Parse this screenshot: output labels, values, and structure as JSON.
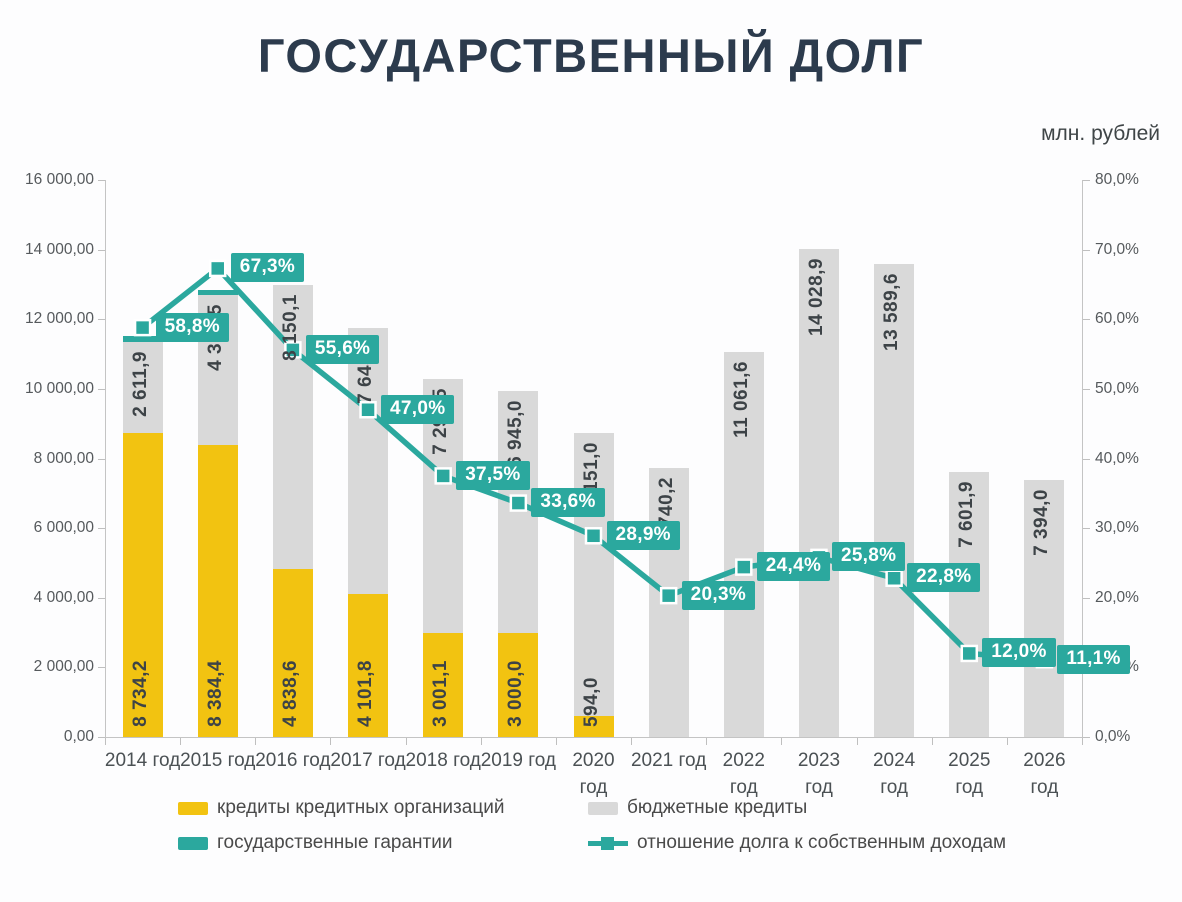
{
  "page": {
    "title": "ГОСУДАРСТВЕННЫЙ ДОЛГ",
    "units_label": "млн. рублей"
  },
  "colors": {
    "yellow": "#F2C311",
    "gray": "#D9D9D9",
    "teal": "#2BA89E",
    "title_text": "#2C3B4D",
    "bar_label_text": "#3D4347",
    "axis_text": "#55595C",
    "ratio_label_bg": "#2BA89E",
    "ratio_label_text": "#FFFFFF"
  },
  "chart_data": {
    "type": "combo: stacked-bar + line",
    "title": "ГОСУДАРСТВЕННЫЙ ДОЛГ",
    "units": "млн. рублей",
    "grid": false,
    "legend_position": "bottom",
    "categories": [
      "2014 год",
      "2015 год",
      "2016 год",
      "2017 год",
      "2018 год",
      "2019 год",
      "2020 год",
      "2021 год",
      "2022 год",
      "2023 год",
      "2024 год",
      "2025 год",
      "2026 год"
    ],
    "x_tick_lines": [
      [
        "2014 год"
      ],
      [
        "2015 год"
      ],
      [
        "2016 год"
      ],
      [
        "2017 год"
      ],
      [
        "2018 год"
      ],
      [
        "2019 год"
      ],
      [
        "2020",
        "год"
      ],
      [
        "2021 год"
      ],
      [
        "2022",
        "год"
      ],
      [
        "2023",
        "год"
      ],
      [
        "2024",
        "год"
      ],
      [
        "2025",
        "год"
      ],
      [
        "2026",
        "год"
      ]
    ],
    "series": [
      {
        "name": "кредиты кредитных организаций",
        "type": "bar",
        "stack_order": 0,
        "color": "#F2C311",
        "values": [
          8734.2,
          8384.4,
          4838.6,
          4101.8,
          3001.1,
          3000.0,
          594.0,
          0,
          0,
          0,
          0,
          0,
          0
        ],
        "data_labels": [
          "8 734,2",
          "8 384,4",
          "4 838,6",
          "4 101,8",
          "3 001,1",
          "3 000,0",
          "594,0",
          "",
          "",
          "",
          "",
          "",
          ""
        ]
      },
      {
        "name": "бюджетные кредиты",
        "type": "bar",
        "stack_order": 1,
        "color": "#D9D9D9",
        "values": [
          2611.9,
          4318.5,
          8150.1,
          7645.9,
          7295.5,
          6945.0,
          8151.0,
          7740.2,
          11061.6,
          14028.9,
          13589.6,
          7601.9,
          7394.0
        ],
        "data_labels": [
          "2 611,9",
          "4 318,5",
          "8 150,1",
          "7 645,9",
          "7 295,5",
          "6 945,0",
          "8 151,0",
          "7 740,2",
          "11 061,6",
          "14 028,9",
          "13 589,6",
          "7 601,9",
          "7 394,0"
        ]
      },
      {
        "name": "государственные гарантии",
        "type": "bar",
        "stack_order": 2,
        "color": "#2BA89E",
        "values_estimated_from_pixels": true,
        "values": [
          180,
          150,
          0,
          0,
          0,
          0,
          0,
          0,
          0,
          0,
          0,
          0,
          0
        ],
        "data_labels": [
          "",
          "",
          "",
          "",
          "",
          "",
          "",
          "",
          "",
          "",
          "",
          "",
          ""
        ]
      },
      {
        "name": "отношение долга к собственным доходам",
        "type": "line",
        "axis": "right",
        "color": "#2BA89E",
        "marker": "square",
        "values": [
          58.8,
          67.3,
          55.6,
          47.0,
          37.5,
          33.6,
          28.9,
          20.3,
          24.4,
          25.8,
          22.8,
          12.0,
          11.1
        ],
        "data_labels": [
          "58,8%",
          "67,3%",
          "55,6%",
          "47,0%",
          "37,5%",
          "33,6%",
          "28,9%",
          "20,3%",
          "24,4%",
          "25,8%",
          "22,8%",
          "12,0%",
          "11,1%"
        ]
      }
    ],
    "left_axis": {
      "min": 0,
      "max": 16000,
      "tick_labels_top_to_bottom": [
        "16 000,00",
        "14 000,00",
        "12 000,00",
        "10 000,00",
        "8 000,00",
        "6 000,00",
        "4 000,00",
        "2 000,00",
        "0,00"
      ]
    },
    "right_axis": {
      "min": 0,
      "max": 80,
      "tick_labels_top_to_bottom": [
        "80,0%",
        "70,0%",
        "60,0%",
        "50,0%",
        "40,0%",
        "30,0%",
        "20,0%",
        "10,0%",
        "0,0%"
      ]
    }
  }
}
